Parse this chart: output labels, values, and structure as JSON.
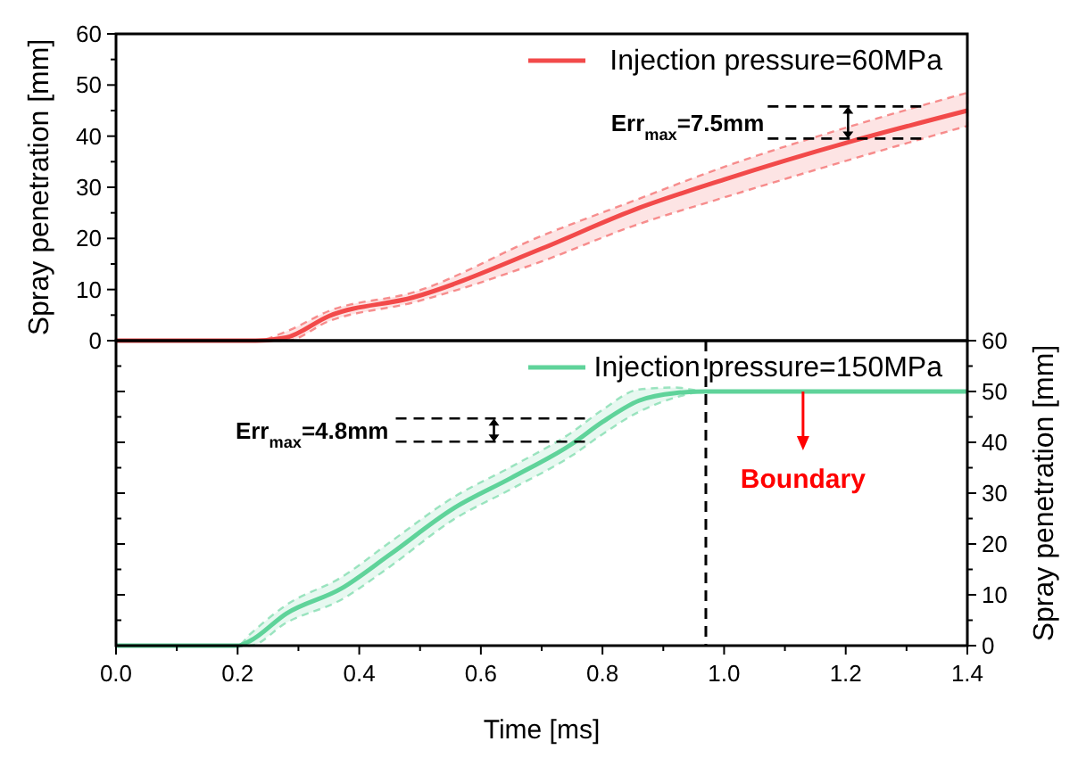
{
  "chart_data": [
    {
      "type": "line",
      "ylabel": "Spray penetration [mm]",
      "xlim": [
        0,
        1.4
      ],
      "ylim": [
        0,
        60
      ],
      "yticks": [
        0,
        10,
        20,
        30,
        40,
        50,
        60
      ],
      "tick_labels": "y",
      "legend": "top right",
      "line_style": "solid",
      "marker": "none",
      "series": [
        {
          "name": "Injection pressure=60MPa",
          "color": "#f24a4a",
          "x": [
            0,
            0.23,
            0.28,
            0.35,
            0.49,
            0.7,
            0.85,
            1.0,
            1.21,
            1.4
          ],
          "values": [
            0,
            0,
            0.6,
            4.8,
            8.5,
            18,
            25.5,
            31.5,
            39,
            45
          ],
          "lower": [
            0,
            0,
            0,
            3.8,
            7.5,
            15.5,
            22.4,
            28,
            35.5,
            42
          ],
          "upper": [
            0,
            0,
            1.8,
            5.8,
            9.5,
            20.5,
            27.3,
            34,
            42,
            48.5
          ]
        }
      ],
      "annotations": [
        {
          "text": "Err$_{max}$=7.5mm",
          "x": 1.33,
          "y": 45.8
        }
      ]
    },
    {
      "type": "line",
      "xlabel": "Time [ms]",
      "ylabel": "Spray penetration [mm]",
      "xlim": [
        0,
        1.4
      ],
      "xticks": [
        {
          "value": 0,
          "label": "0.0"
        },
        {
          "value": 0.1,
          "label": null
        },
        {
          "value": 0.2,
          "label": "0.2"
        },
        {
          "value": 0.3,
          "label": null
        },
        {
          "value": 0.4,
          "label": "0.4"
        },
        {
          "value": 0.5,
          "label": null
        },
        {
          "value": 0.6,
          "label": "0.6"
        },
        {
          "value": 0.7,
          "label": null
        },
        {
          "value": 0.8,
          "label": "0.8"
        },
        {
          "value": 0.9,
          "label": null
        },
        {
          "value": 1.0,
          "label": "1.0"
        },
        {
          "value": 1.1,
          "label": null
        },
        {
          "value": 1.2,
          "label": "1.2"
        },
        {
          "value": 1.3,
          "label": null
        },
        {
          "value": 1.4,
          "label": "1.4"
        }
      ],
      "ylim": [
        0,
        60
      ],
      "yticks": [
        0,
        10,
        20,
        30,
        40,
        50,
        60
      ],
      "legend": "top right",
      "line_style": "solid",
      "marker": "none",
      "series": [
        {
          "name": "Injection pressure=150MPa",
          "color": "#5fd39a",
          "x": [
            0,
            0.2,
            0.22,
            0.28,
            0.37,
            0.45,
            0.555,
            0.65,
            0.75,
            0.8,
            0.86,
            0.92,
            0.97,
            1.4
          ],
          "values": [
            0,
            0,
            0.9,
            6.3,
            11.2,
            17.9,
            27,
            33,
            39.7,
            44,
            48.2,
            49.7,
            50,
            50
          ],
          "lower": [
            0,
            0,
            0,
            4.5,
            9,
            15.5,
            24.8,
            30.8,
            37.4,
            41.6,
            46,
            48.8,
            50,
            50
          ],
          "upper": [
            0,
            0,
            2.2,
            8,
            13.4,
            20.3,
            29.2,
            35.2,
            42,
            46.4,
            50.4,
            50.8,
            50,
            50
          ]
        }
      ],
      "ref_lines": [
        {
          "axis": "x",
          "value": 0.97,
          "color": "#000000",
          "line_style": "dashed"
        }
      ],
      "annotations": [
        {
          "text": "Err$_{max}$=4.8mm",
          "x": 0.78,
          "y": 44.7
        },
        "Boundary"
      ]
    }
  ]
}
